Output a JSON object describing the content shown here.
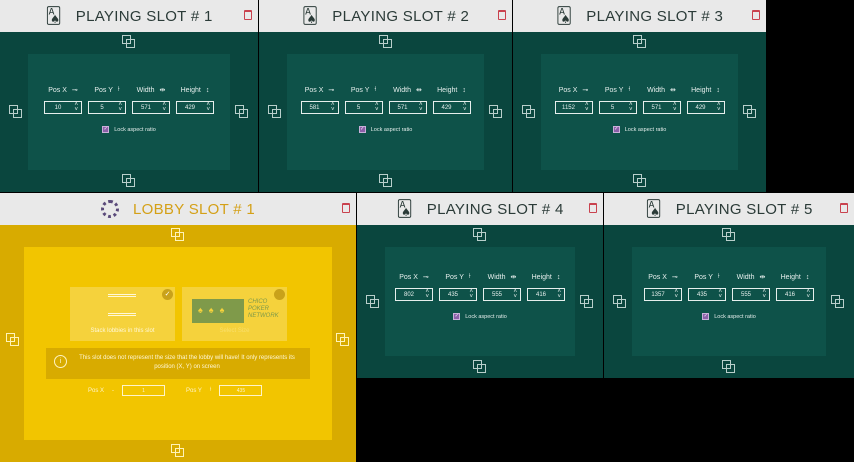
{
  "playing_slots": [
    {
      "title": "PLAYING SLOT # 1",
      "pos_x": "10",
      "pos_y": "5",
      "width": "571",
      "height": "429"
    },
    {
      "title": "PLAYING SLOT # 2",
      "pos_x": "581",
      "pos_y": "5",
      "width": "571",
      "height": "429"
    },
    {
      "title": "PLAYING SLOT # 3",
      "pos_x": "1152",
      "pos_y": "5",
      "width": "571",
      "height": "429"
    },
    {
      "title": "PLAYING SLOT # 4",
      "pos_x": "802",
      "pos_y": "435",
      "width": "555",
      "height": "416"
    },
    {
      "title": "PLAYING SLOT # 5",
      "pos_x": "1357",
      "pos_y": "435",
      "width": "555",
      "height": "416"
    }
  ],
  "labels": {
    "pos_x": "Pos X",
    "pos_y": "Pos Y",
    "width": "Width",
    "height": "Height",
    "lock": "Lock aspect ratio"
  },
  "lock_aspect_checked": true,
  "lobby": {
    "title": "LOBBY SLOT # 1",
    "stack_label": "Stack lobbies in this slot",
    "network_logo": "CHICO POKER NETWORK",
    "select_size": "Select Size",
    "info": "This slot does not represent the size that the lobby will have! It only represents its position (X, Y) on screen",
    "pos_x": "1",
    "pos_y": "435",
    "selected_option": "stack"
  },
  "colors": {
    "teal": "#0a463e",
    "teal_inner": "#0e5249",
    "yellow": "#d8ab00",
    "yellow_inner": "#f2c500",
    "trash": "#c9424e",
    "lobby_title": "#d4a017"
  }
}
